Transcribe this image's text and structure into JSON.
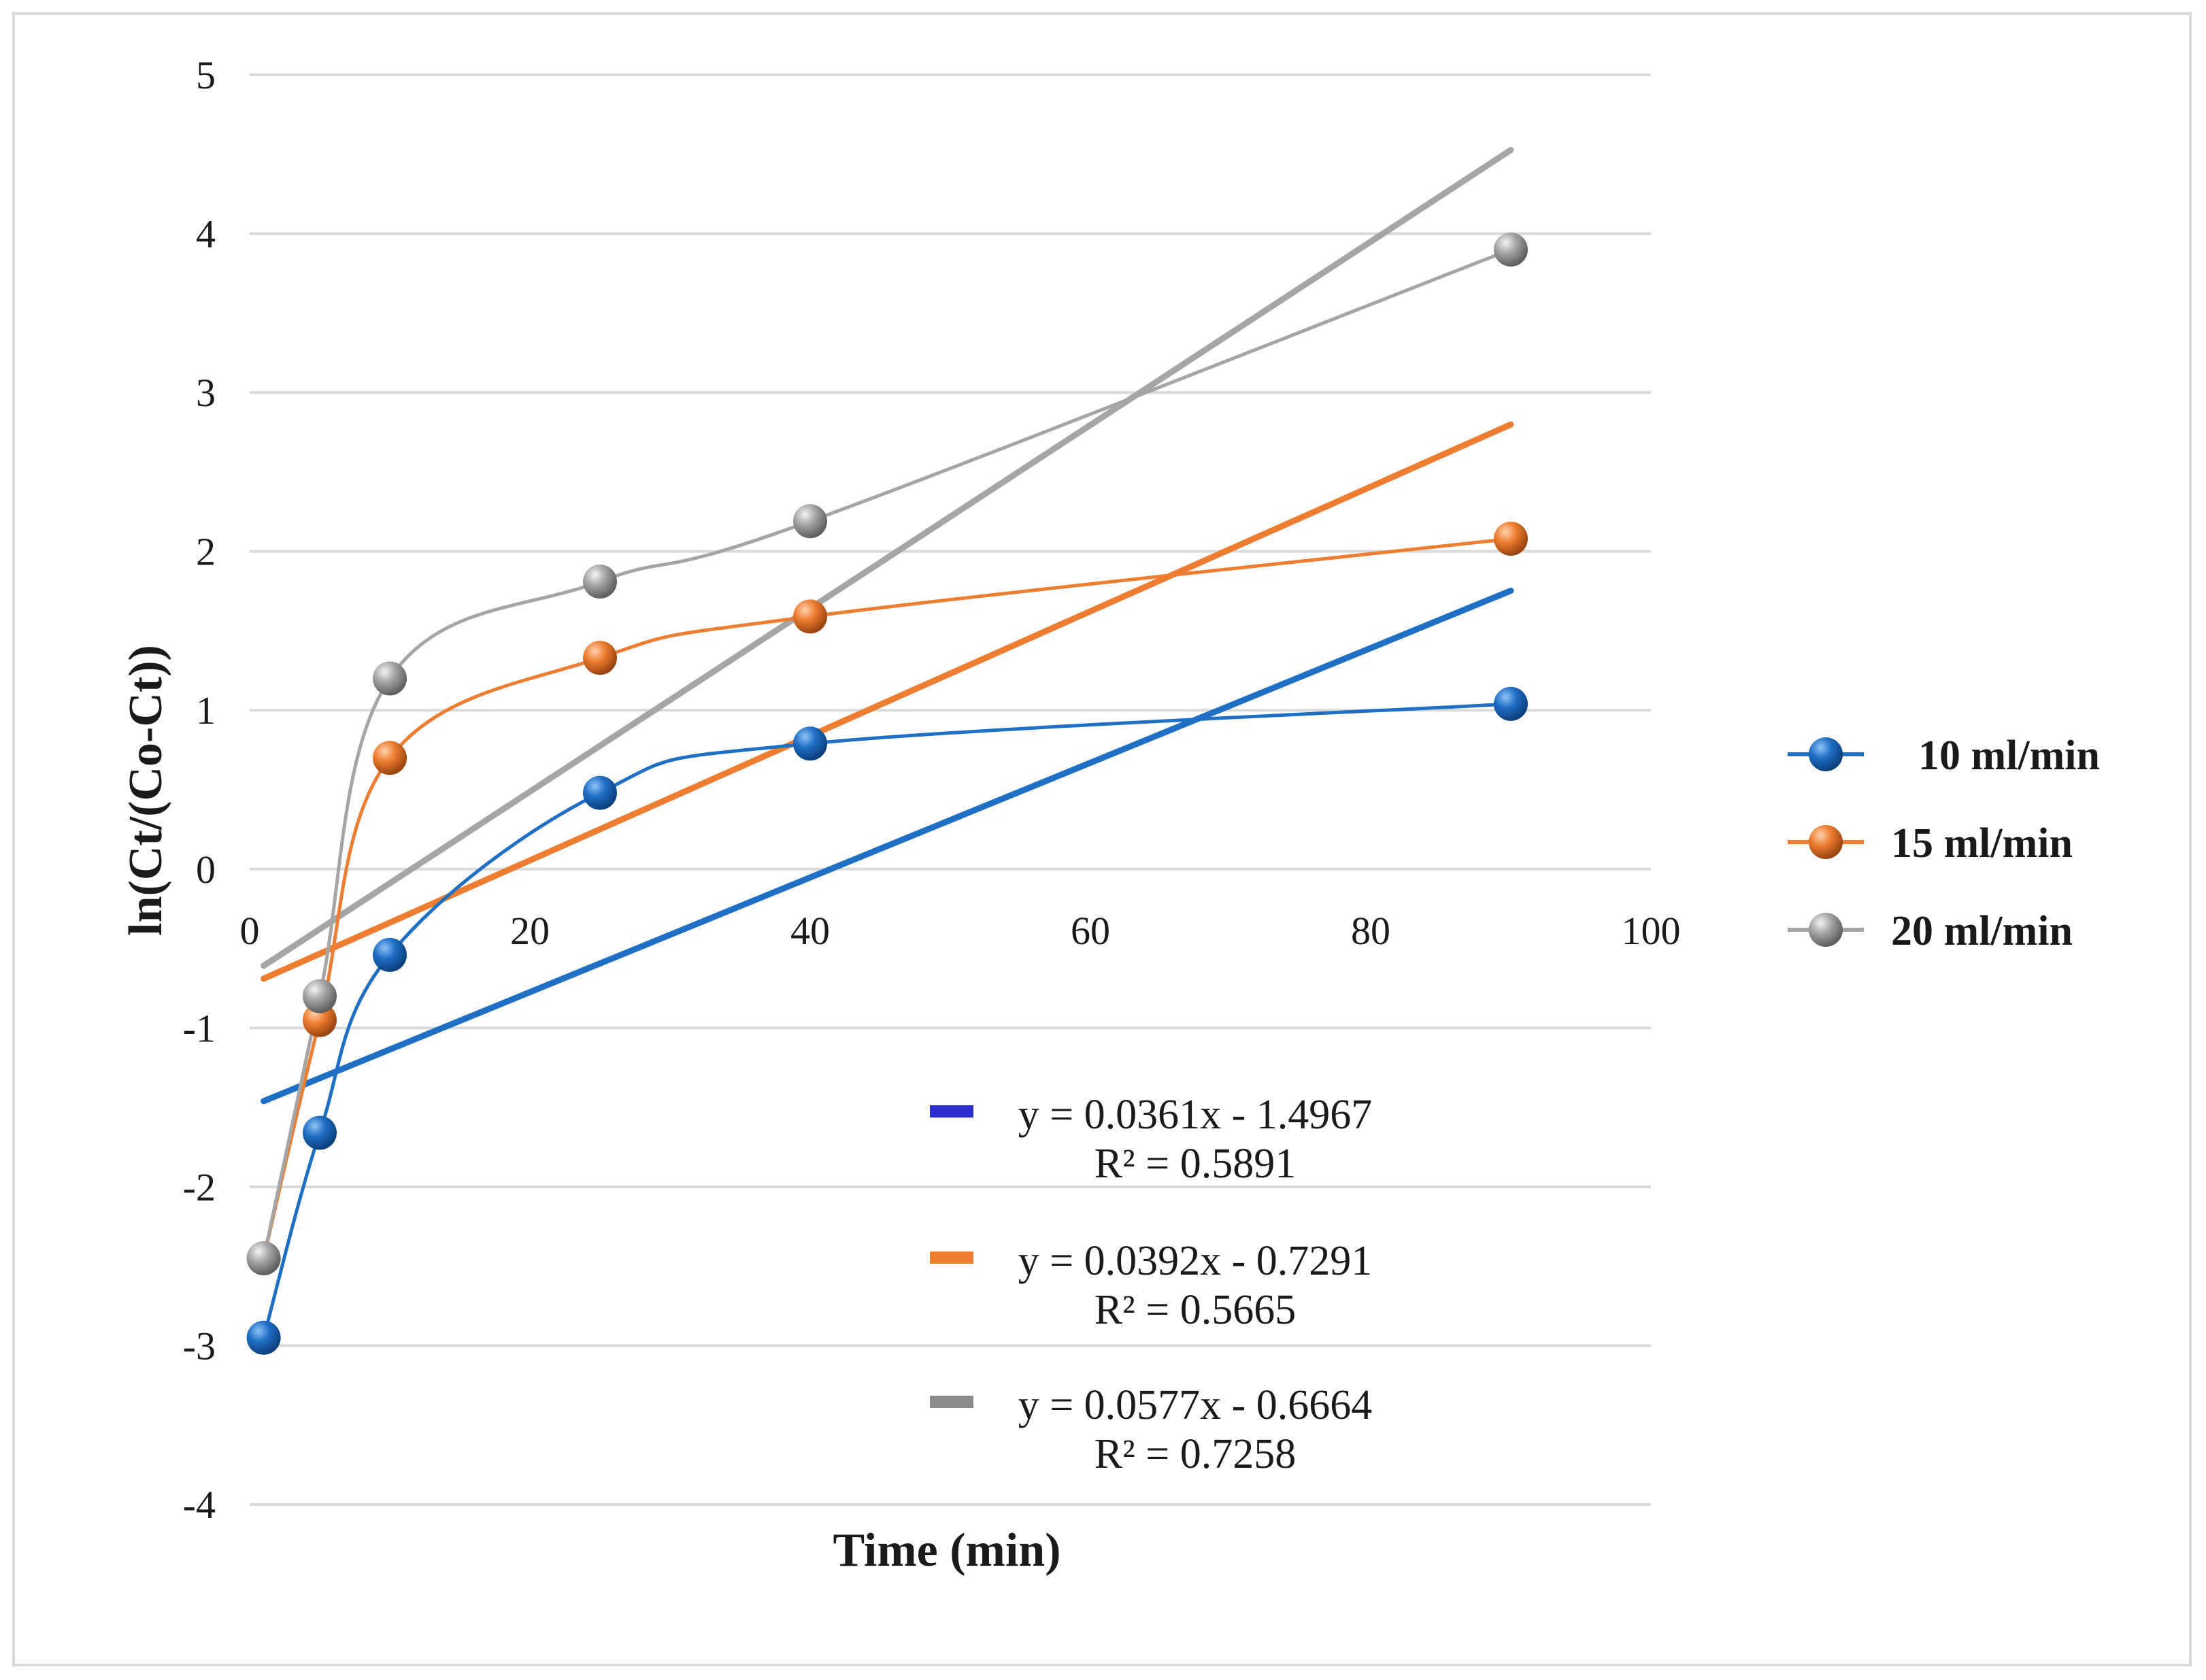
{
  "chart_data": {
    "type": "scatter",
    "title": "",
    "xlabel": "Time (min)",
    "ylabel": "ln(Ct/(Co-Ct))",
    "xlim": [
      0,
      100
    ],
    "ylim": [
      -4,
      5
    ],
    "x_ticks": [
      "0",
      "20",
      "40",
      "60",
      "80",
      "100"
    ],
    "y_ticks": [
      "-4",
      "-3",
      "-2",
      "-1",
      "0",
      "1",
      "2",
      "3",
      "4",
      "5"
    ],
    "x_tick_values": [
      0,
      20,
      40,
      60,
      80,
      100
    ],
    "y_tick_values": [
      -4,
      -3,
      -2,
      -1,
      0,
      1,
      2,
      3,
      4,
      5
    ],
    "grid": true,
    "legend_position": "right",
    "series": [
      {
        "name": "10 ml/min",
        "color": "#1f6fc5",
        "x": [
          1,
          5,
          10,
          25,
          40,
          90
        ],
        "y": [
          -2.95,
          -1.66,
          -0.54,
          0.48,
          0.79,
          1.04
        ],
        "trendline": {
          "slope": 0.0361,
          "intercept": -1.4967,
          "x_range": [
            1,
            90
          ],
          "equation": "y = 0.0361x - 1.4967",
          "r2": "R² = 0.5891",
          "legend_color": "#2f2fd0"
        }
      },
      {
        "name": "15 ml/min",
        "color": "#ed7d31",
        "x": [
          1,
          5,
          10,
          25,
          40,
          90
        ],
        "y": [
          -2.45,
          -0.95,
          0.7,
          1.33,
          1.59,
          2.08
        ],
        "trendline": {
          "slope": 0.0392,
          "intercept": -0.7291,
          "x_range": [
            1,
            90
          ],
          "equation": "y = 0.0392x - 0.7291",
          "r2": "R² = 0.5665",
          "legend_color": "#ed7d31"
        }
      },
      {
        "name": "20 ml/min",
        "color": "#a5a5a5",
        "x": [
          1,
          5,
          10,
          25,
          40,
          90
        ],
        "y": [
          -2.45,
          -0.8,
          1.2,
          1.81,
          2.19,
          3.9
        ],
        "trendline": {
          "slope": 0.0577,
          "intercept": -0.6664,
          "x_range": [
            1,
            90
          ],
          "equation": "y = 0.0577x - 0.6664",
          "r2": "R² = 0.7258",
          "legend_color": "#8c8c8c"
        }
      }
    ]
  }
}
